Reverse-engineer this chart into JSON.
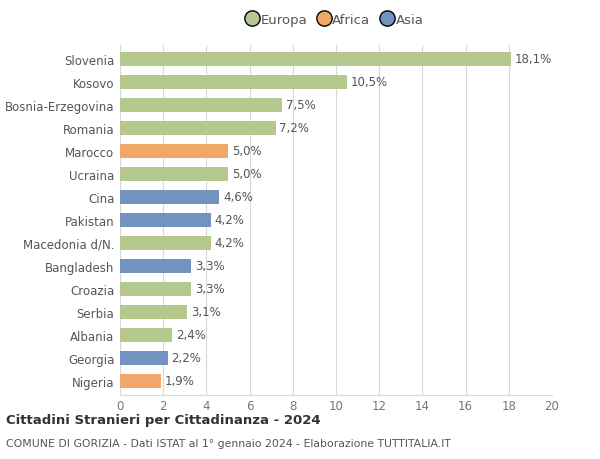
{
  "categories": [
    "Slovenia",
    "Kosovo",
    "Bosnia-Erzegovina",
    "Romania",
    "Marocco",
    "Ucraina",
    "Cina",
    "Pakistan",
    "Macedonia d/N.",
    "Bangladesh",
    "Croazia",
    "Serbia",
    "Albania",
    "Georgia",
    "Nigeria"
  ],
  "values": [
    18.1,
    10.5,
    7.5,
    7.2,
    5.0,
    5.0,
    4.6,
    4.2,
    4.2,
    3.3,
    3.3,
    3.1,
    2.4,
    2.2,
    1.9
  ],
  "labels": [
    "18,1%",
    "10,5%",
    "7,5%",
    "7,2%",
    "5,0%",
    "5,0%",
    "4,6%",
    "4,2%",
    "4,2%",
    "3,3%",
    "3,3%",
    "3,1%",
    "2,4%",
    "2,2%",
    "1,9%"
  ],
  "continents": [
    "Europa",
    "Europa",
    "Europa",
    "Europa",
    "Africa",
    "Europa",
    "Asia",
    "Asia",
    "Europa",
    "Asia",
    "Europa",
    "Europa",
    "Europa",
    "Asia",
    "Africa"
  ],
  "colors": {
    "Europa": "#b5c98e",
    "Africa": "#f0a868",
    "Asia": "#7293c0"
  },
  "xlim": [
    0,
    20
  ],
  "xticks": [
    0,
    2,
    4,
    6,
    8,
    10,
    12,
    14,
    16,
    18,
    20
  ],
  "title": "Cittadini Stranieri per Cittadinanza - 2024",
  "subtitle": "COMUNE DI GORIZIA - Dati ISTAT al 1° gennaio 2024 - Elaborazione TUTTITALIA.IT",
  "background_color": "#ffffff",
  "grid_color": "#d8d8d8",
  "label_fontsize": 8.5,
  "bar_height": 0.6,
  "legend_order": [
    "Europa",
    "Africa",
    "Asia"
  ]
}
